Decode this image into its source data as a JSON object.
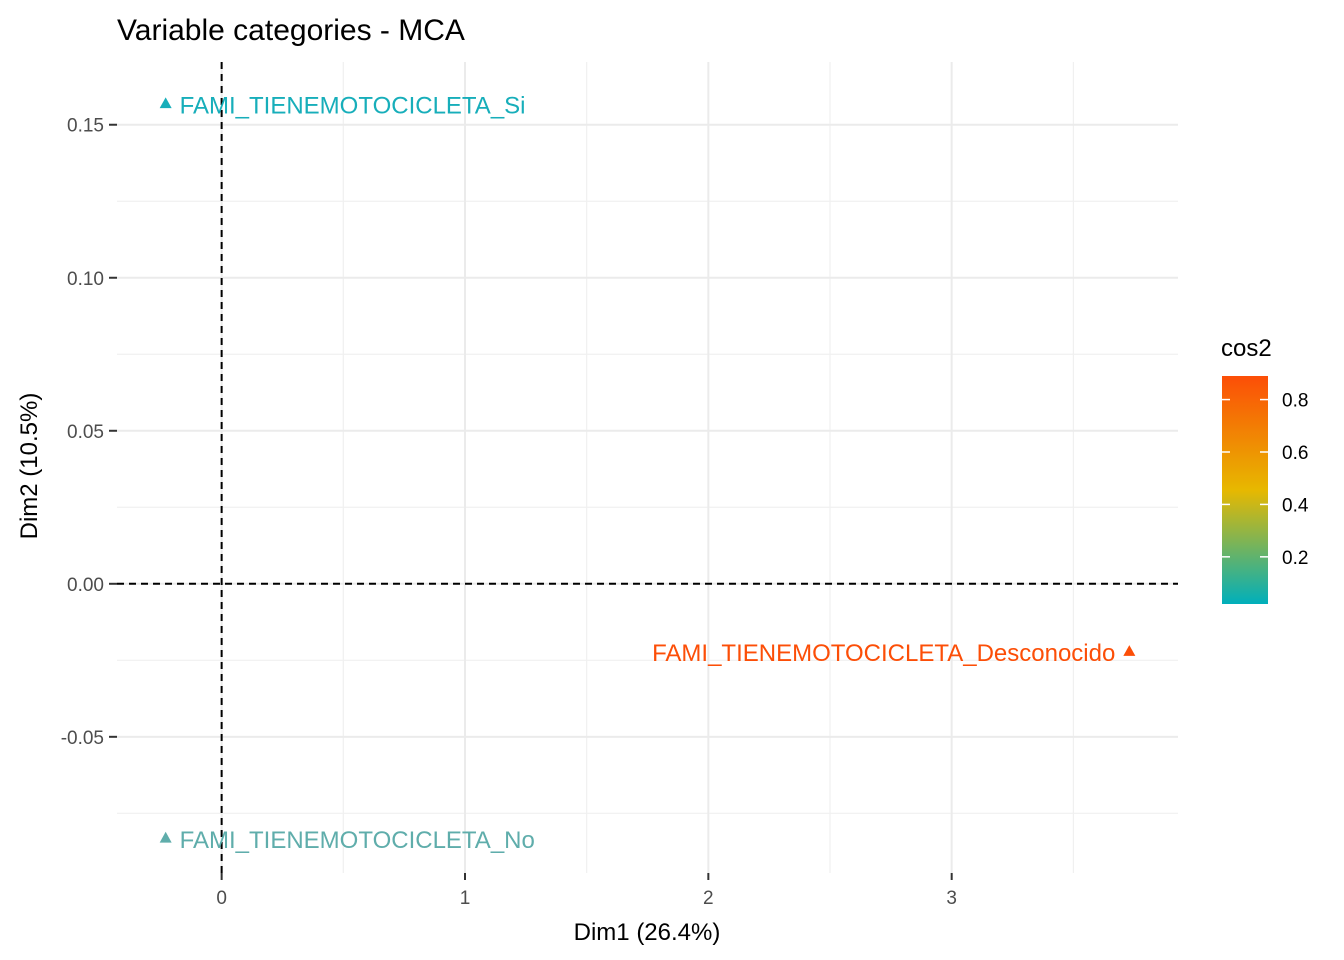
{
  "chart_data": {
    "type": "scatter",
    "title": "Variable categories - MCA",
    "xlabel": "Dim1 (26.4%)",
    "ylabel": "Dim2 (10.5%)",
    "xlim": [
      -0.43,
      3.93
    ],
    "ylim": [
      -0.0945,
      0.1705
    ],
    "x_ticks": [
      0,
      1,
      2,
      3
    ],
    "x_tick_labels": [
      "0",
      "1",
      "2",
      "3"
    ],
    "y_ticks": [
      -0.05,
      0.0,
      0.05,
      0.1,
      0.15
    ],
    "y_tick_labels": [
      "-0.05",
      "0.00",
      "0.05",
      "0.10",
      "0.15"
    ],
    "grid": true,
    "reference_lines": {
      "x": 0,
      "y": 0,
      "style": "dashed"
    },
    "points": [
      {
        "label": "FAMI_TIENEMOTOCICLETA_Si",
        "x": -0.23,
        "y": 0.157,
        "cos2": 0.05,
        "color": "#17AEBA",
        "label_side": "right"
      },
      {
        "label": "FAMI_TIENEMOTOCICLETA_Desconocido",
        "x": 3.73,
        "y": -0.022,
        "cos2": 0.88,
        "color": "#FC4E07",
        "label_side": "left"
      },
      {
        "label": "FAMI_TIENEMOTOCICLETA_No",
        "x": -0.23,
        "y": -0.083,
        "cos2": 0.19,
        "color": "#5FADAB",
        "label_side": "right"
      }
    ],
    "legend": {
      "title": "cos2",
      "position": "right",
      "range": [
        0.02,
        0.89
      ],
      "ticks": [
        0.2,
        0.4,
        0.6,
        0.8
      ],
      "tick_labels": [
        "0.2",
        "0.4",
        "0.6",
        "0.8"
      ],
      "gradient_colors": [
        "#00AFBB",
        "#E7B800",
        "#FC4E07"
      ]
    }
  }
}
